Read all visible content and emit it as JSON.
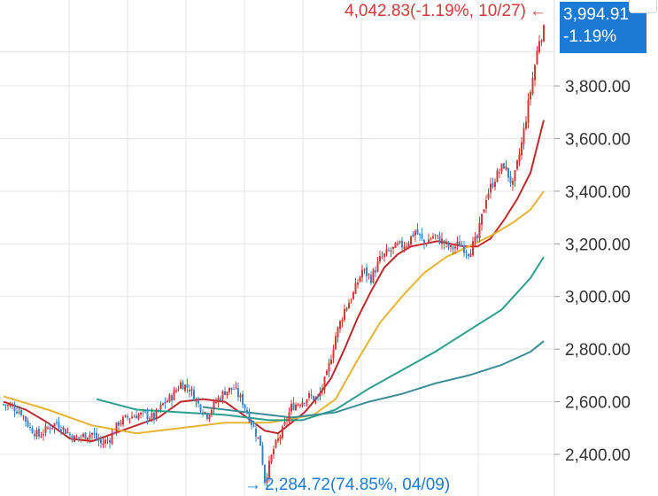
{
  "chart_data": {
    "type": "candlestick",
    "y_axis": {
      "range": [
        2330,
        4100
      ],
      "ticks": [
        2400,
        2600,
        2800,
        3000,
        3200,
        3400,
        3600,
        3800
      ],
      "tick_labels": [
        "2,400.00",
        "2,600.00",
        "2,800.00",
        "3,000.00",
        "3,200.00",
        "3,400.00",
        "3,600.00",
        "3,800.00"
      ],
      "position": "right"
    },
    "grid": true,
    "high_annotation": {
      "text": "4,042.83(-1.19%, 10/27)",
      "value": 4042.83,
      "color": "#d23a3a"
    },
    "low_annotation": {
      "text": "2,284.72(74.85%, 04/09)",
      "value": 2284.72,
      "color": "#1a7ad6"
    },
    "current": {
      "price_label": "3,994.91",
      "change_label": "-1.19%",
      "value": 3994.91
    },
    "close_points": [
      [
        0,
        2590
      ],
      [
        4,
        2580
      ],
      [
        8,
        2560
      ],
      [
        12,
        2500
      ],
      [
        16,
        2470
      ],
      [
        20,
        2500
      ],
      [
        24,
        2520
      ],
      [
        28,
        2490
      ],
      [
        32,
        2460
      ],
      [
        36,
        2470
      ],
      [
        40,
        2480
      ],
      [
        44,
        2440
      ],
      [
        48,
        2460
      ],
      [
        52,
        2520
      ],
      [
        56,
        2540
      ],
      [
        60,
        2550
      ],
      [
        64,
        2550
      ],
      [
        68,
        2540
      ],
      [
        72,
        2590
      ],
      [
        76,
        2620
      ],
      [
        80,
        2670
      ],
      [
        84,
        2650
      ],
      [
        88,
        2590
      ],
      [
        92,
        2550
      ],
      [
        96,
        2600
      ],
      [
        100,
        2640
      ],
      [
        104,
        2650
      ],
      [
        108,
        2600
      ],
      [
        112,
        2520
      ],
      [
        116,
        2440
      ],
      [
        118,
        2300
      ],
      [
        122,
        2420
      ],
      [
        126,
        2490
      ],
      [
        130,
        2580
      ],
      [
        134,
        2600
      ],
      [
        138,
        2620
      ],
      [
        142,
        2610
      ],
      [
        146,
        2700
      ],
      [
        150,
        2850
      ],
      [
        154,
        2950
      ],
      [
        158,
        3010
      ],
      [
        162,
        3100
      ],
      [
        166,
        3070
      ],
      [
        170,
        3140
      ],
      [
        174,
        3170
      ],
      [
        178,
        3190
      ],
      [
        182,
        3200
      ],
      [
        186,
        3250
      ],
      [
        190,
        3200
      ],
      [
        194,
        3230
      ],
      [
        198,
        3210
      ],
      [
        202,
        3180
      ],
      [
        206,
        3200
      ],
      [
        210,
        3170
      ],
      [
        214,
        3220
      ],
      [
        218,
        3380
      ],
      [
        222,
        3450
      ],
      [
        226,
        3500
      ],
      [
        230,
        3420
      ],
      [
        234,
        3580
      ],
      [
        238,
        3780
      ],
      [
        242,
        3980
      ],
      [
        244,
        4010
      ]
    ],
    "moving_averages": [
      {
        "color": "#c0272d",
        "values": [
          [
            0,
            2600
          ],
          [
            10,
            2570
          ],
          [
            20,
            2520
          ],
          [
            30,
            2460
          ],
          [
            40,
            2450
          ],
          [
            50,
            2480
          ],
          [
            60,
            2510
          ],
          [
            70,
            2540
          ],
          [
            80,
            2600
          ],
          [
            90,
            2610
          ],
          [
            100,
            2600
          ],
          [
            110,
            2540
          ],
          [
            118,
            2490
          ],
          [
            124,
            2480
          ],
          [
            130,
            2520
          ],
          [
            136,
            2560
          ],
          [
            142,
            2620
          ],
          [
            148,
            2690
          ],
          [
            154,
            2800
          ],
          [
            160,
            2920
          ],
          [
            166,
            3020
          ],
          [
            172,
            3110
          ],
          [
            178,
            3160
          ],
          [
            184,
            3190
          ],
          [
            190,
            3200
          ],
          [
            196,
            3210
          ],
          [
            202,
            3200
          ],
          [
            208,
            3190
          ],
          [
            214,
            3190
          ],
          [
            220,
            3220
          ],
          [
            226,
            3290
          ],
          [
            232,
            3370
          ],
          [
            238,
            3470
          ],
          [
            244,
            3670
          ]
        ]
      },
      {
        "color": "#e7b333",
        "values": [
          [
            0,
            2620
          ],
          [
            20,
            2570
          ],
          [
            40,
            2510
          ],
          [
            60,
            2480
          ],
          [
            80,
            2500
          ],
          [
            100,
            2520
          ],
          [
            120,
            2520
          ],
          [
            140,
            2550
          ],
          [
            150,
            2610
          ],
          [
            160,
            2760
          ],
          [
            170,
            2900
          ],
          [
            180,
            3000
          ],
          [
            190,
            3090
          ],
          [
            200,
            3150
          ],
          [
            210,
            3190
          ],
          [
            220,
            3230
          ],
          [
            230,
            3280
          ],
          [
            238,
            3330
          ],
          [
            244,
            3400
          ]
        ]
      },
      {
        "color": "#2b9e8e",
        "values": [
          [
            42,
            2610
          ],
          [
            60,
            2570
          ],
          [
            80,
            2560
          ],
          [
            100,
            2550
          ],
          [
            120,
            2530
          ],
          [
            135,
            2530
          ],
          [
            150,
            2570
          ],
          [
            165,
            2650
          ],
          [
            180,
            2720
          ],
          [
            195,
            2790
          ],
          [
            210,
            2870
          ],
          [
            225,
            2950
          ],
          [
            238,
            3070
          ],
          [
            244,
            3150
          ]
        ]
      },
      {
        "color": "#3a8c98",
        "values": [
          [
            90,
            2580
          ],
          [
            110,
            2560
          ],
          [
            130,
            2540
          ],
          [
            150,
            2560
          ],
          [
            165,
            2600
          ],
          [
            180,
            2630
          ],
          [
            195,
            2670
          ],
          [
            210,
            2700
          ],
          [
            225,
            2740
          ],
          [
            238,
            2790
          ],
          [
            244,
            2830
          ]
        ]
      }
    ]
  }
}
